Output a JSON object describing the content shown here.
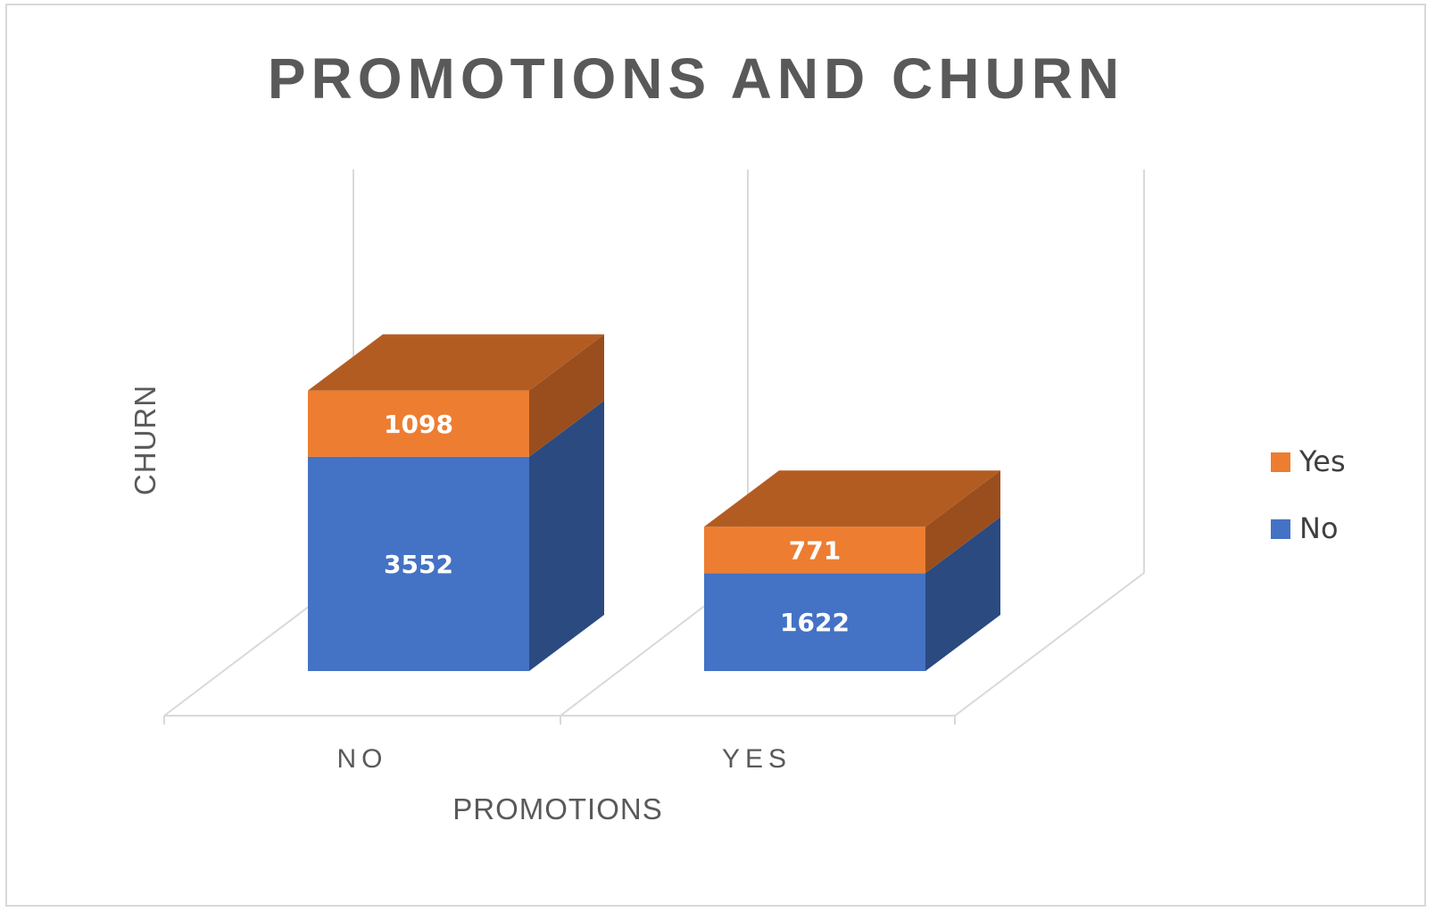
{
  "chart_data": {
    "type": "bar",
    "stacked": true,
    "three_d": true,
    "title": "PROMOTIONS AND CHURN",
    "xlabel": "PROMOTIONS",
    "ylabel": "CHURN",
    "categories": [
      "NO",
      "YES"
    ],
    "series": [
      {
        "name": "No",
        "values": [
          3552,
          1622
        ],
        "color": "#4472c4",
        "side_color": "#2a4a80"
      },
      {
        "name": "Yes",
        "values": [
          1098,
          771
        ],
        "color": "#ed7d31",
        "side_color": "#9a4e1e",
        "top_color": "#b35c22"
      }
    ],
    "legend_order": [
      "Yes",
      "No"
    ],
    "legend_position": "right",
    "grid": true,
    "data_labels": true
  }
}
